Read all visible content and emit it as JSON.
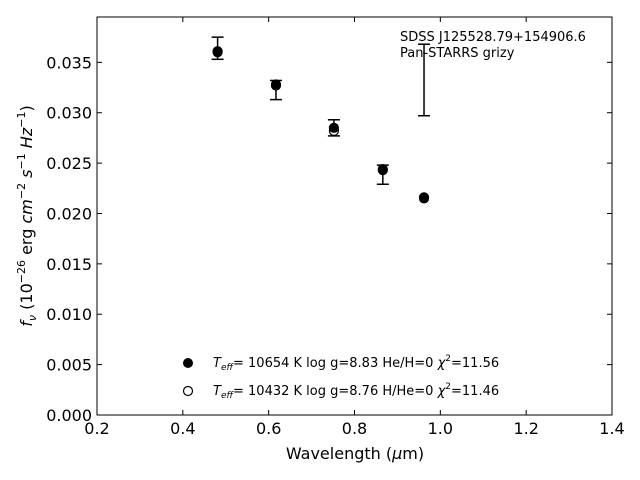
{
  "chart_data": {
    "type": "scatter",
    "xlabel_main": "Wavelength (",
    "xlabel_unit_mu": "μ",
    "xlabel_unit_rest": "m)",
    "ylabel_f": "f",
    "ylabel_nu": "ν",
    "ylabel_open": " (10",
    "ylabel_exp1": "−26",
    "ylabel_erg": " erg ",
    "ylabel_cm": "cm",
    "ylabel_exp2": "−2",
    "ylabel_s": " s",
    "ylabel_exp3": "−1",
    "ylabel_hz": " Hz",
    "ylabel_exp4": "−1",
    "ylabel_close": ")",
    "xlim": [
      0.2,
      1.4
    ],
    "ylim": [
      0.0,
      0.0395
    ],
    "xticks": [
      "0.2",
      "0.4",
      "0.6",
      "0.8",
      "1.0",
      "1.2",
      "1.4"
    ],
    "xtick_values": [
      0.2,
      0.4,
      0.6,
      0.8,
      1.0,
      1.2,
      1.4
    ],
    "yticks": [
      "0.000",
      "0.005",
      "0.010",
      "0.015",
      "0.020",
      "0.025",
      "0.030",
      "0.035"
    ],
    "ytick_values": [
      0.0,
      0.005,
      0.01,
      0.015,
      0.02,
      0.025,
      0.03,
      0.035
    ],
    "annotation_line1": "SDSS J125528.79+154906.6",
    "annotation_line2": "Pan-STARRS grizy",
    "observed": {
      "x": [
        0.481,
        0.617,
        0.752,
        0.866,
        0.962
      ],
      "lower": [
        0.0353,
        0.0313,
        0.0277,
        0.0229,
        0.0297
      ],
      "upper": [
        0.0375,
        0.0332,
        0.0293,
        0.0248,
        0.0368
      ]
    },
    "series": [
      {
        "marker": "filled",
        "y": [
          0.0361,
          0.0328,
          0.0285,
          0.0244,
          0.0216
        ],
        "legend_T": "T",
        "legend_eff": "eff",
        "legend_text": "= 10654 K  log g=8.83  He/H=0  ",
        "legend_chi": "χ",
        "legend_chi_exp": "2",
        "legend_chi_val": "=11.56"
      },
      {
        "marker": "open",
        "y": [
          0.036,
          0.0327,
          0.0282,
          0.0243,
          0.0215
        ],
        "legend_T": "T",
        "legend_eff": "eff",
        "legend_text": "= 10432 K  log g=8.76  H/He=0  ",
        "legend_chi": "χ",
        "legend_chi_exp": "2",
        "legend_chi_val": "=11.46"
      }
    ],
    "legend_placement": "bottom-center",
    "grid": false
  }
}
